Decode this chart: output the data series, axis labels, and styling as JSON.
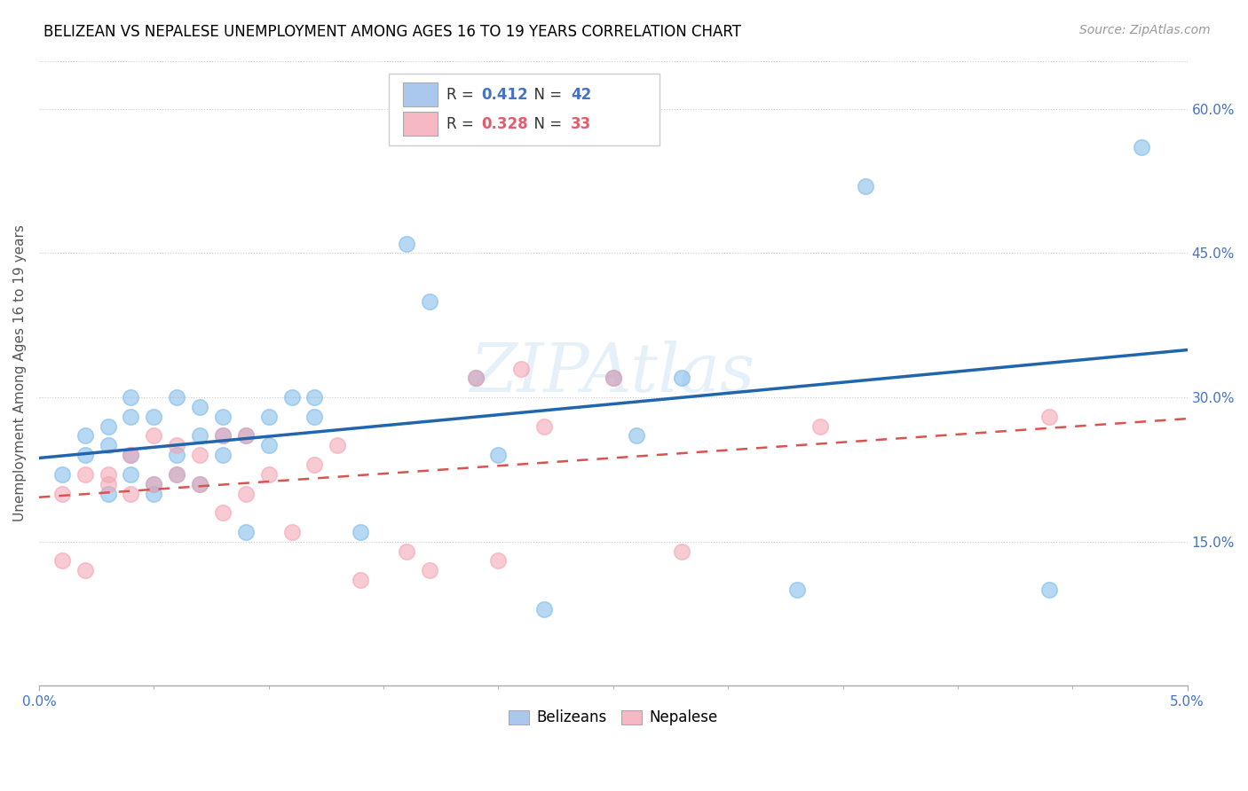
{
  "title": "BELIZEAN VS NEPALESE UNEMPLOYMENT AMONG AGES 16 TO 19 YEARS CORRELATION CHART",
  "source": "Source: ZipAtlas.com",
  "ylabel": "Unemployment Among Ages 16 to 19 years",
  "xlim": [
    0.0,
    0.05
  ],
  "ylim": [
    0.0,
    0.65
  ],
  "right_yticks": [
    0.0,
    0.15,
    0.3,
    0.45,
    0.6
  ],
  "right_yticklabels": [
    "",
    "15.0%",
    "30.0%",
    "45.0%",
    "60.0%"
  ],
  "xticks_major": [
    0.0,
    0.05
  ],
  "xtick_major_labels": [
    "0.0%",
    "5.0%"
  ],
  "xticks_minor": [
    0.005,
    0.01,
    0.015,
    0.02,
    0.025,
    0.03,
    0.035,
    0.04,
    0.045
  ],
  "belizean_R": 0.412,
  "belizean_N": 42,
  "nepalese_R": 0.328,
  "nepalese_N": 33,
  "belizean_color": "#7ab8e8",
  "nepalese_color": "#f4a0b0",
  "belizean_line_color": "#2166ac",
  "nepalese_line_color": "#d9534f",
  "legend_box_color_belizean": "#aac8ee",
  "legend_box_color_nepalese": "#f5b8c4",
  "watermark": "ZIPAtlas",
  "belizean_x": [
    0.001,
    0.002,
    0.002,
    0.003,
    0.003,
    0.003,
    0.004,
    0.004,
    0.004,
    0.004,
    0.005,
    0.005,
    0.005,
    0.006,
    0.006,
    0.006,
    0.007,
    0.007,
    0.007,
    0.008,
    0.008,
    0.008,
    0.009,
    0.009,
    0.01,
    0.01,
    0.011,
    0.012,
    0.012,
    0.014,
    0.016,
    0.017,
    0.019,
    0.02,
    0.022,
    0.025,
    0.026,
    0.028,
    0.033,
    0.036,
    0.044,
    0.048
  ],
  "belizean_y": [
    0.22,
    0.24,
    0.26,
    0.2,
    0.25,
    0.27,
    0.22,
    0.24,
    0.28,
    0.3,
    0.2,
    0.21,
    0.28,
    0.22,
    0.24,
    0.3,
    0.21,
    0.26,
    0.29,
    0.24,
    0.26,
    0.28,
    0.16,
    0.26,
    0.25,
    0.28,
    0.3,
    0.28,
    0.3,
    0.16,
    0.46,
    0.4,
    0.32,
    0.24,
    0.08,
    0.32,
    0.26,
    0.32,
    0.1,
    0.52,
    0.1,
    0.56
  ],
  "nepalese_x": [
    0.001,
    0.001,
    0.002,
    0.002,
    0.003,
    0.003,
    0.004,
    0.004,
    0.005,
    0.005,
    0.006,
    0.006,
    0.007,
    0.007,
    0.008,
    0.008,
    0.009,
    0.009,
    0.01,
    0.011,
    0.012,
    0.013,
    0.014,
    0.016,
    0.017,
    0.019,
    0.02,
    0.021,
    0.022,
    0.025,
    0.028,
    0.034,
    0.044
  ],
  "nepalese_y": [
    0.13,
    0.2,
    0.12,
    0.22,
    0.21,
    0.22,
    0.2,
    0.24,
    0.21,
    0.26,
    0.22,
    0.25,
    0.21,
    0.24,
    0.18,
    0.26,
    0.2,
    0.26,
    0.22,
    0.16,
    0.23,
    0.25,
    0.11,
    0.14,
    0.12,
    0.32,
    0.13,
    0.33,
    0.27,
    0.32,
    0.14,
    0.27,
    0.28
  ]
}
